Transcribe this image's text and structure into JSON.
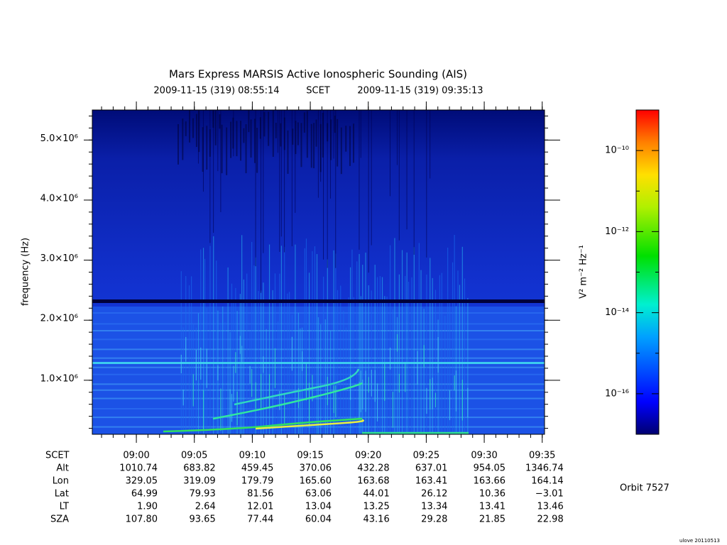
{
  "chart_data": {
    "type": "spectrogram",
    "title": "Mars Express MARSIS Active Ionospheric Sounding (AIS)",
    "subtitle": {
      "start": "2009-11-15 (319) 08:55:14",
      "time_system": "SCET",
      "end": "2009-11-15 (319) 09:35:13"
    },
    "y_label": "frequency (Hz)",
    "ylim": [
      100000,
      5500000
    ],
    "yticks": [
      {
        "value": 1000000,
        "label": "1.0×10⁶"
      },
      {
        "value": 2000000,
        "label": "2.0×10⁶"
      },
      {
        "value": 3000000,
        "label": "3.0×10⁶"
      },
      {
        "value": 4000000,
        "label": "4.0×10⁶"
      },
      {
        "value": 5000000,
        "label": "5.0×10⁶"
      }
    ],
    "x_label": "SCET",
    "xlim": [
      536.2,
      575.2
    ],
    "xticks": [
      {
        "value": 540,
        "label": "09:00"
      },
      {
        "value": 545,
        "label": "09:05"
      },
      {
        "value": 550,
        "label": "09:10"
      },
      {
        "value": 555,
        "label": "09:15"
      },
      {
        "value": 560,
        "label": "09:20"
      },
      {
        "value": 565,
        "label": "09:25"
      },
      {
        "value": 570,
        "label": "09:30"
      },
      {
        "value": 575,
        "label": "09:35"
      }
    ],
    "colorbar": {
      "label": "V² m⁻² Hz⁻¹",
      "scale": "log",
      "lim": [
        1e-17,
        1e-09
      ],
      "ticks": [
        {
          "value": 1e-10,
          "label": "10⁻¹⁰"
        },
        {
          "value": 1e-12,
          "label": "10⁻¹²"
        },
        {
          "value": 1e-14,
          "label": "10⁻¹⁴"
        },
        {
          "value": 1e-16,
          "label": "10⁻¹⁶"
        }
      ]
    },
    "ephemeris": [
      {
        "name": "Alt",
        "values": [
          "1010.74",
          "683.82",
          "459.45",
          "370.06",
          "432.28",
          "637.01",
          "954.05",
          "1346.74"
        ]
      },
      {
        "name": "Lon",
        "values": [
          "329.05",
          "319.09",
          "179.79",
          "165.60",
          "163.68",
          "163.41",
          "163.66",
          "164.14"
        ]
      },
      {
        "name": "Lat",
        "values": [
          "64.99",
          "79.93",
          "81.56",
          "63.06",
          "44.01",
          "26.12",
          "10.36",
          "−3.01"
        ]
      },
      {
        "name": "LT",
        "values": [
          "1.90",
          "2.64",
          "12.01",
          "13.04",
          "13.25",
          "13.34",
          "13.41",
          "13.46"
        ]
      },
      {
        "name": "SZA",
        "values": [
          "107.80",
          "93.65",
          "77.44",
          "60.04",
          "43.16",
          "29.28",
          "21.85",
          "22.98"
        ]
      }
    ],
    "orbit": "Orbit 7527",
    "credit": "ulove 20110513"
  }
}
